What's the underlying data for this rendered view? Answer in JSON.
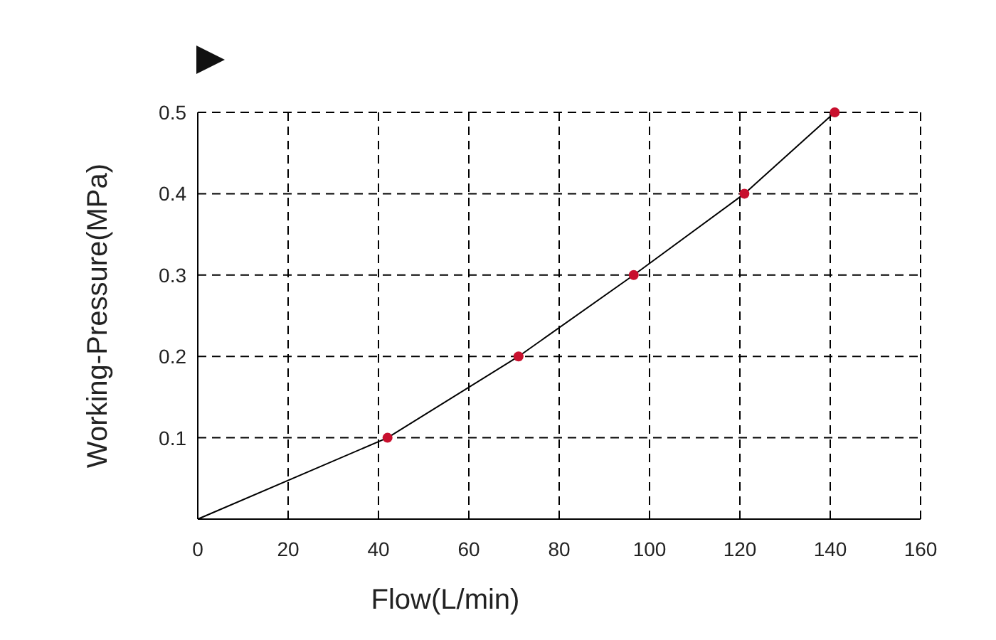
{
  "chart_data": {
    "type": "line",
    "xlabel": "Flow(L/min)",
    "ylabel": "Working-Pressure(MPa)",
    "xlim": [
      0,
      160
    ],
    "xticks": [
      0,
      20,
      40,
      60,
      80,
      100,
      120,
      140,
      160
    ],
    "ylim": [
      0,
      0.5
    ],
    "yticks": [
      0.1,
      0.2,
      0.3,
      0.4,
      0.5
    ],
    "grid": true,
    "series": [
      {
        "color": "#000000",
        "marker": "none",
        "x": [
          0,
          42,
          71,
          96.5,
          121,
          141
        ],
        "values": [
          0,
          0.1,
          0.2,
          0.3,
          0.4,
          0.5
        ]
      },
      {
        "type": "scatter",
        "color": "#c8102e",
        "marker": "circle",
        "x": [
          42,
          71,
          96.5,
          121,
          141
        ],
        "values": [
          0.1,
          0.2,
          0.3,
          0.4,
          0.5
        ]
      }
    ]
  }
}
